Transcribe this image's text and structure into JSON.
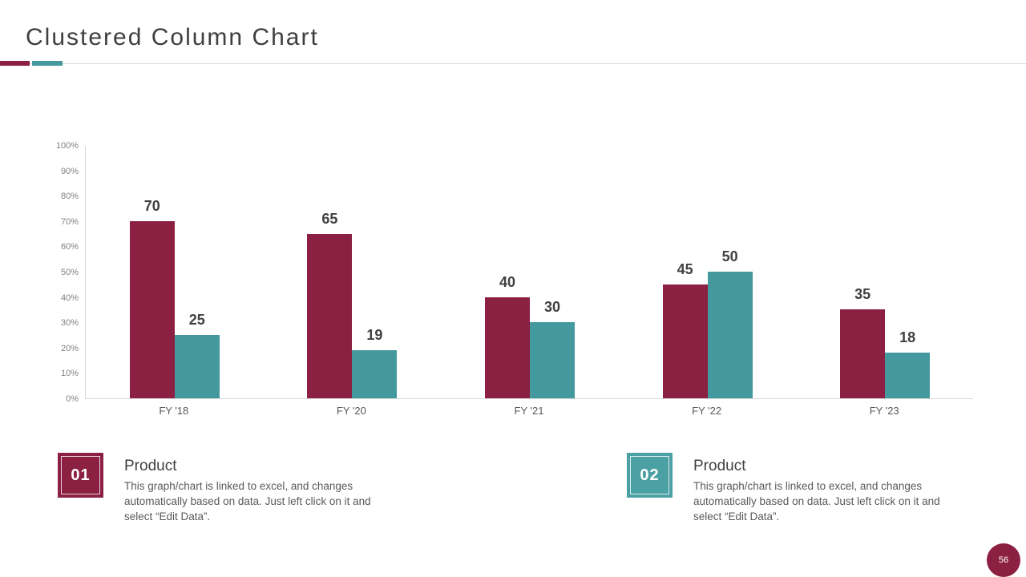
{
  "slide": {
    "title": "Clustered Column Chart",
    "page_number": "56"
  },
  "colors": {
    "accent_maroon": "#8c2042",
    "accent_teal": "#44999f",
    "callout_teal": "#4aa0a3",
    "text_dark": "#404040",
    "text_gray": "#595959",
    "axis_line": "#d9d9d9",
    "tick_label": "#7f7f7f"
  },
  "chart_data": {
    "type": "bar",
    "title": "",
    "categories": [
      "FY '18",
      "FY '20",
      "FY '21",
      "FY '22",
      "FY '23"
    ],
    "series": [
      {
        "name": "Product 01",
        "color": "#8c2042",
        "values": [
          70,
          65,
          40,
          45,
          35
        ]
      },
      {
        "name": "Product 02",
        "color": "#44999f",
        "values": [
          25,
          19,
          30,
          50,
          18
        ]
      }
    ],
    "ylim": [
      0,
      100
    ],
    "yticks": [
      "0%",
      "10%",
      "20%",
      "30%",
      "40%",
      "50%",
      "60%",
      "70%",
      "80%",
      "90%",
      "100%"
    ],
    "grid": false,
    "data_labels": true,
    "legend": "none"
  },
  "callouts": [
    {
      "number": "01",
      "title": "Product",
      "description": "This graph/chart is linked to excel, and changes automatically based on data. Just left click on it and select “Edit Data”."
    },
    {
      "number": "02",
      "title": "Product",
      "description": "This graph/chart is linked to excel, and changes automatically based on data. Just left click on it and select “Edit Data”."
    }
  ]
}
